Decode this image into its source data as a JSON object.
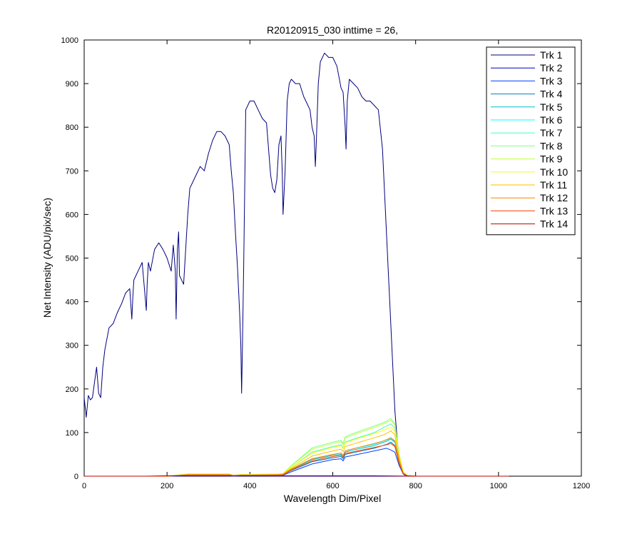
{
  "chart_data": {
    "type": "line",
    "title": "R20120915_030 inttime = 26,",
    "xlabel": "Wavelength Dim/Pixel",
    "ylabel": "Net Intensity (ADU/pix/sec)",
    "xlim": [
      0,
      1200
    ],
    "ylim": [
      0,
      1000
    ],
    "xticks": [
      0,
      200,
      400,
      600,
      800,
      1000,
      1200
    ],
    "yticks": [
      0,
      100,
      200,
      300,
      400,
      500,
      600,
      700,
      800,
      900,
      1000
    ],
    "grid": false,
    "legend_position": "top-right",
    "series": [
      {
        "name": "Trk 1",
        "color": "#00007f",
        "x": [
          0,
          5,
          10,
          15,
          20,
          30,
          35,
          40,
          45,
          50,
          60,
          70,
          80,
          90,
          100,
          110,
          115,
          118,
          120,
          130,
          140,
          150,
          152,
          155,
          160,
          170,
          180,
          190,
          200,
          210,
          215,
          220,
          222,
          225,
          228,
          230,
          240,
          245,
          250,
          255,
          260,
          270,
          280,
          290,
          300,
          310,
          320,
          330,
          340,
          350,
          355,
          360,
          365,
          370,
          375,
          378,
          380,
          382,
          385,
          390,
          400,
          410,
          420,
          430,
          440,
          450,
          455,
          460,
          465,
          470,
          475,
          478,
          480,
          485,
          490,
          495,
          500,
          510,
          520,
          530,
          540,
          545,
          550,
          555,
          558,
          560,
          565,
          570,
          580,
          590,
          600,
          610,
          620,
          625,
          630,
          632,
          635,
          640,
          650,
          660,
          670,
          680,
          690,
          700,
          710,
          720,
          730,
          740,
          750,
          760,
          770,
          775,
          780,
          790,
          800,
          850,
          900,
          950,
          1000,
          1024
        ],
        "y": [
          180,
          135,
          185,
          175,
          180,
          250,
          190,
          180,
          250,
          290,
          340,
          350,
          375,
          395,
          420,
          430,
          360,
          420,
          450,
          470,
          490,
          380,
          440,
          490,
          470,
          520,
          535,
          520,
          500,
          470,
          530,
          470,
          360,
          520,
          560,
          460,
          440,
          520,
          600,
          660,
          670,
          690,
          710,
          700,
          740,
          770,
          790,
          790,
          780,
          760,
          700,
          650,
          560,
          480,
          380,
          300,
          190,
          300,
          480,
          840,
          860,
          860,
          840,
          820,
          810,
          690,
          660,
          650,
          680,
          760,
          780,
          700,
          600,
          700,
          860,
          900,
          910,
          900,
          900,
          870,
          850,
          840,
          800,
          780,
          710,
          760,
          900,
          950,
          970,
          960,
          960,
          940,
          890,
          880,
          800,
          750,
          860,
          910,
          900,
          890,
          870,
          860,
          860,
          850,
          840,
          750,
          550,
          350,
          150,
          30,
          5,
          2,
          1,
          0,
          0,
          0,
          0,
          0,
          0,
          0
        ]
      },
      {
        "name": "Trk 2",
        "color": "#0000bf",
        "x": [
          0,
          1024
        ],
        "y": [
          0,
          0
        ]
      },
      {
        "name": "Trk 3",
        "color": "#0040ff",
        "x": [
          0,
          200,
          250,
          300,
          350,
          360,
          380,
          400,
          470,
          480,
          500,
          550,
          600,
          620,
          625,
          630,
          650,
          700,
          720,
          730,
          740,
          750,
          760,
          770,
          780,
          800,
          1024
        ],
        "y": [
          0,
          0,
          1,
          1,
          1,
          0,
          1,
          1,
          1,
          2,
          10,
          28,
          38,
          40,
          35,
          44,
          48,
          58,
          62,
          64,
          60,
          55,
          25,
          5,
          1,
          0,
          0
        ]
      },
      {
        "name": "Trk 4",
        "color": "#0080bf",
        "x": [
          0,
          200,
          250,
          300,
          350,
          360,
          380,
          400,
          470,
          480,
          500,
          550,
          600,
          620,
          625,
          630,
          650,
          700,
          720,
          730,
          740,
          750,
          760,
          770,
          780,
          800,
          1024
        ],
        "y": [
          0,
          0,
          2,
          2,
          2,
          1,
          2,
          2,
          2,
          3,
          13,
          33,
          42,
          45,
          40,
          50,
          54,
          64,
          70,
          73,
          78,
          70,
          30,
          6,
          1,
          0,
          0
        ]
      },
      {
        "name": "Trk 5",
        "color": "#00bfbf",
        "x": [
          0,
          200,
          250,
          300,
          350,
          360,
          380,
          400,
          470,
          480,
          500,
          550,
          600,
          620,
          625,
          630,
          650,
          700,
          720,
          730,
          740,
          750,
          760,
          770,
          780,
          800,
          1024
        ],
        "y": [
          0,
          0,
          3,
          3,
          3,
          1,
          2,
          2,
          3,
          4,
          15,
          38,
          48,
          50,
          45,
          55,
          60,
          70,
          77,
          80,
          85,
          78,
          35,
          7,
          1,
          0,
          0
        ]
      },
      {
        "name": "Trk 6",
        "color": "#00ffff",
        "x": [
          0,
          200,
          250,
          300,
          350,
          360,
          380,
          400,
          470,
          480,
          500,
          550,
          600,
          620,
          625,
          630,
          650,
          700,
          720,
          730,
          740,
          750,
          760,
          770,
          780,
          800,
          1024
        ],
        "y": [
          0,
          0,
          3,
          3,
          3,
          1,
          2,
          2,
          3,
          4,
          16,
          40,
          50,
          53,
          48,
          58,
          63,
          73,
          80,
          83,
          86,
          80,
          36,
          7,
          1,
          0,
          0
        ]
      },
      {
        "name": "Trk 7",
        "color": "#40ffbf",
        "x": [
          0,
          200,
          250,
          300,
          350,
          360,
          380,
          400,
          470,
          480,
          500,
          550,
          600,
          620,
          625,
          630,
          650,
          700,
          720,
          730,
          740,
          750,
          760,
          770,
          780,
          800,
          1024
        ],
        "y": [
          0,
          0,
          4,
          4,
          4,
          1,
          3,
          3,
          4,
          5,
          20,
          55,
          68,
          72,
          65,
          78,
          85,
          100,
          110,
          115,
          120,
          110,
          48,
          9,
          1,
          0,
          0
        ]
      },
      {
        "name": "Trk 8",
        "color": "#80ff80",
        "x": [
          0,
          200,
          250,
          300,
          350,
          360,
          380,
          400,
          470,
          480,
          500,
          550,
          600,
          620,
          625,
          630,
          650,
          700,
          720,
          730,
          740,
          750,
          760,
          770,
          780,
          800,
          1024
        ],
        "y": [
          0,
          0,
          5,
          5,
          5,
          2,
          4,
          4,
          5,
          6,
          24,
          65,
          78,
          82,
          75,
          90,
          98,
          115,
          122,
          126,
          132,
          120,
          52,
          10,
          2,
          0,
          0
        ]
      },
      {
        "name": "Trk 9",
        "color": "#bfff40",
        "x": [
          0,
          200,
          250,
          300,
          350,
          360,
          380,
          400,
          470,
          480,
          500,
          550,
          600,
          620,
          625,
          630,
          650,
          700,
          720,
          730,
          740,
          750,
          760,
          770,
          780,
          800,
          1024
        ],
        "y": [
          0,
          0,
          5,
          5,
          5,
          2,
          4,
          4,
          5,
          6,
          23,
          62,
          75,
          79,
          72,
          87,
          95,
          112,
          119,
          123,
          128,
          118,
          50,
          10,
          2,
          0,
          0
        ]
      },
      {
        "name": "Trk 10",
        "color": "#ffff00",
        "x": [
          0,
          200,
          250,
          300,
          350,
          360,
          380,
          400,
          470,
          480,
          500,
          550,
          600,
          620,
          625,
          630,
          650,
          700,
          720,
          730,
          740,
          750,
          760,
          770,
          780,
          800,
          1024
        ],
        "y": [
          0,
          0,
          4,
          4,
          4,
          2,
          3,
          3,
          4,
          5,
          20,
          53,
          66,
          70,
          63,
          76,
          83,
          98,
          104,
          108,
          112,
          103,
          45,
          9,
          1,
          0,
          0
        ]
      },
      {
        "name": "Trk 11",
        "color": "#ffbf00",
        "x": [
          0,
          200,
          250,
          300,
          350,
          360,
          380,
          400,
          470,
          480,
          500,
          550,
          600,
          620,
          625,
          630,
          650,
          700,
          720,
          730,
          740,
          750,
          760,
          770,
          780,
          800,
          1024
        ],
        "y": [
          0,
          0,
          4,
          4,
          4,
          2,
          3,
          3,
          4,
          5,
          18,
          46,
          58,
          62,
          56,
          68,
          74,
          88,
          94,
          98,
          104,
          95,
          42,
          8,
          1,
          0,
          0
        ]
      },
      {
        "name": "Trk 12",
        "color": "#ff8000",
        "x": [
          0,
          200,
          250,
          300,
          350,
          360,
          380,
          400,
          470,
          480,
          500,
          550,
          600,
          620,
          625,
          630,
          650,
          700,
          720,
          730,
          740,
          750,
          760,
          770,
          780,
          800,
          1024
        ],
        "y": [
          0,
          0,
          3,
          3,
          3,
          1,
          2,
          2,
          3,
          4,
          16,
          40,
          50,
          53,
          48,
          58,
          63,
          75,
          80,
          84,
          88,
          81,
          36,
          7,
          1,
          0,
          0
        ]
      },
      {
        "name": "Trk 13",
        "color": "#ff4000",
        "x": [
          0,
          200,
          250,
          300,
          350,
          360,
          380,
          400,
          470,
          480,
          500,
          550,
          600,
          620,
          625,
          630,
          650,
          700,
          720,
          730,
          740,
          750,
          760,
          770,
          780,
          800,
          1024
        ],
        "y": [
          0,
          0,
          3,
          3,
          3,
          1,
          2,
          2,
          3,
          3,
          14,
          35,
          45,
          48,
          43,
          52,
          56,
          66,
          70,
          72,
          75,
          68,
          30,
          6,
          1,
          0,
          0
        ]
      },
      {
        "name": "Trk 14",
        "color": "#bf0000",
        "x": [
          0,
          150,
          200,
          250,
          300,
          350,
          400,
          500,
          600,
          700,
          800,
          1024
        ],
        "y": [
          0,
          0,
          1,
          1,
          1,
          1,
          1,
          1,
          1,
          1,
          0,
          0
        ]
      }
    ]
  }
}
